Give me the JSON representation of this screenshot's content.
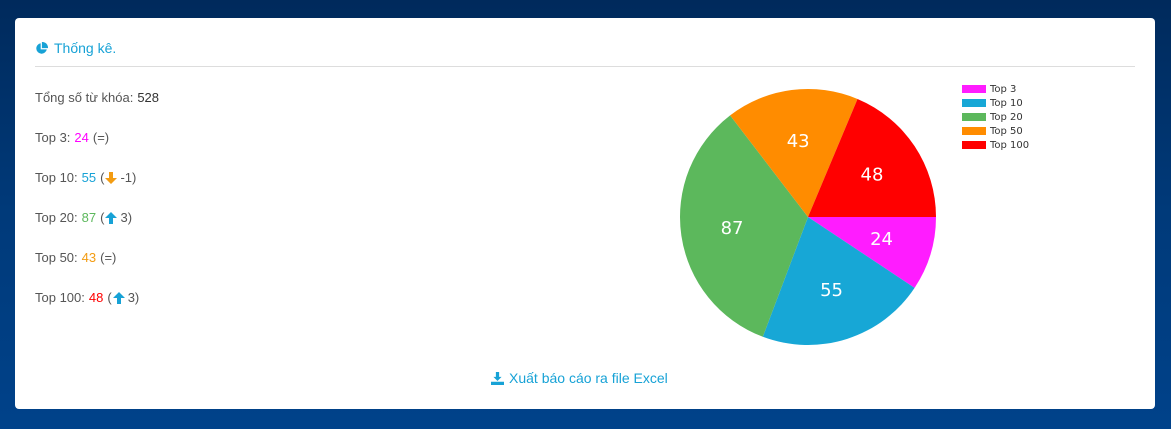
{
  "header": {
    "title": "Thống kê.",
    "icon": "pie-chart-icon"
  },
  "stats": {
    "total_label": "Tổng số từ khóa:",
    "total_value": "528",
    "rows": [
      {
        "label": "Top 3:",
        "value": "24",
        "color": "#ff00ff",
        "change": "(=)",
        "trend": "none"
      },
      {
        "label": "Top 10:",
        "value": "55",
        "color": "#17a2d6",
        "change_prefix": "(",
        "change": "-1)",
        "trend": "down",
        "trend_color": "#f39c12"
      },
      {
        "label": "Top 20:",
        "value": "87",
        "color": "#5cb85c",
        "change_prefix": "(",
        "change": "3)",
        "trend": "up",
        "trend_color": "#17a2d6"
      },
      {
        "label": "Top 50:",
        "value": "43",
        "color": "#f39c12",
        "change": "(=)",
        "trend": "none"
      },
      {
        "label": "Top 100:",
        "value": "48",
        "color": "#ff0000",
        "change_prefix": "(",
        "change": "3)",
        "trend": "up",
        "trend_color": "#17a2d6"
      }
    ]
  },
  "chart_data": {
    "type": "pie",
    "title": "",
    "start_angle_deg": 0,
    "direction": "clockwise",
    "legend_position": "top-right",
    "slices": [
      {
        "name": "Top 3",
        "value": 24,
        "color": "#ff1cff"
      },
      {
        "name": "Top 10",
        "value": 55,
        "color": "#17a7d6"
      },
      {
        "name": "Top 20",
        "value": 87,
        "color": "#5cb85c"
      },
      {
        "name": "Top 50",
        "value": 43,
        "color": "#ff8c00"
      },
      {
        "name": "Top 100",
        "value": 48,
        "color": "#ff0000"
      }
    ]
  },
  "export": {
    "label": "Xuất báo cáo ra file Excel",
    "icon": "download-icon"
  }
}
